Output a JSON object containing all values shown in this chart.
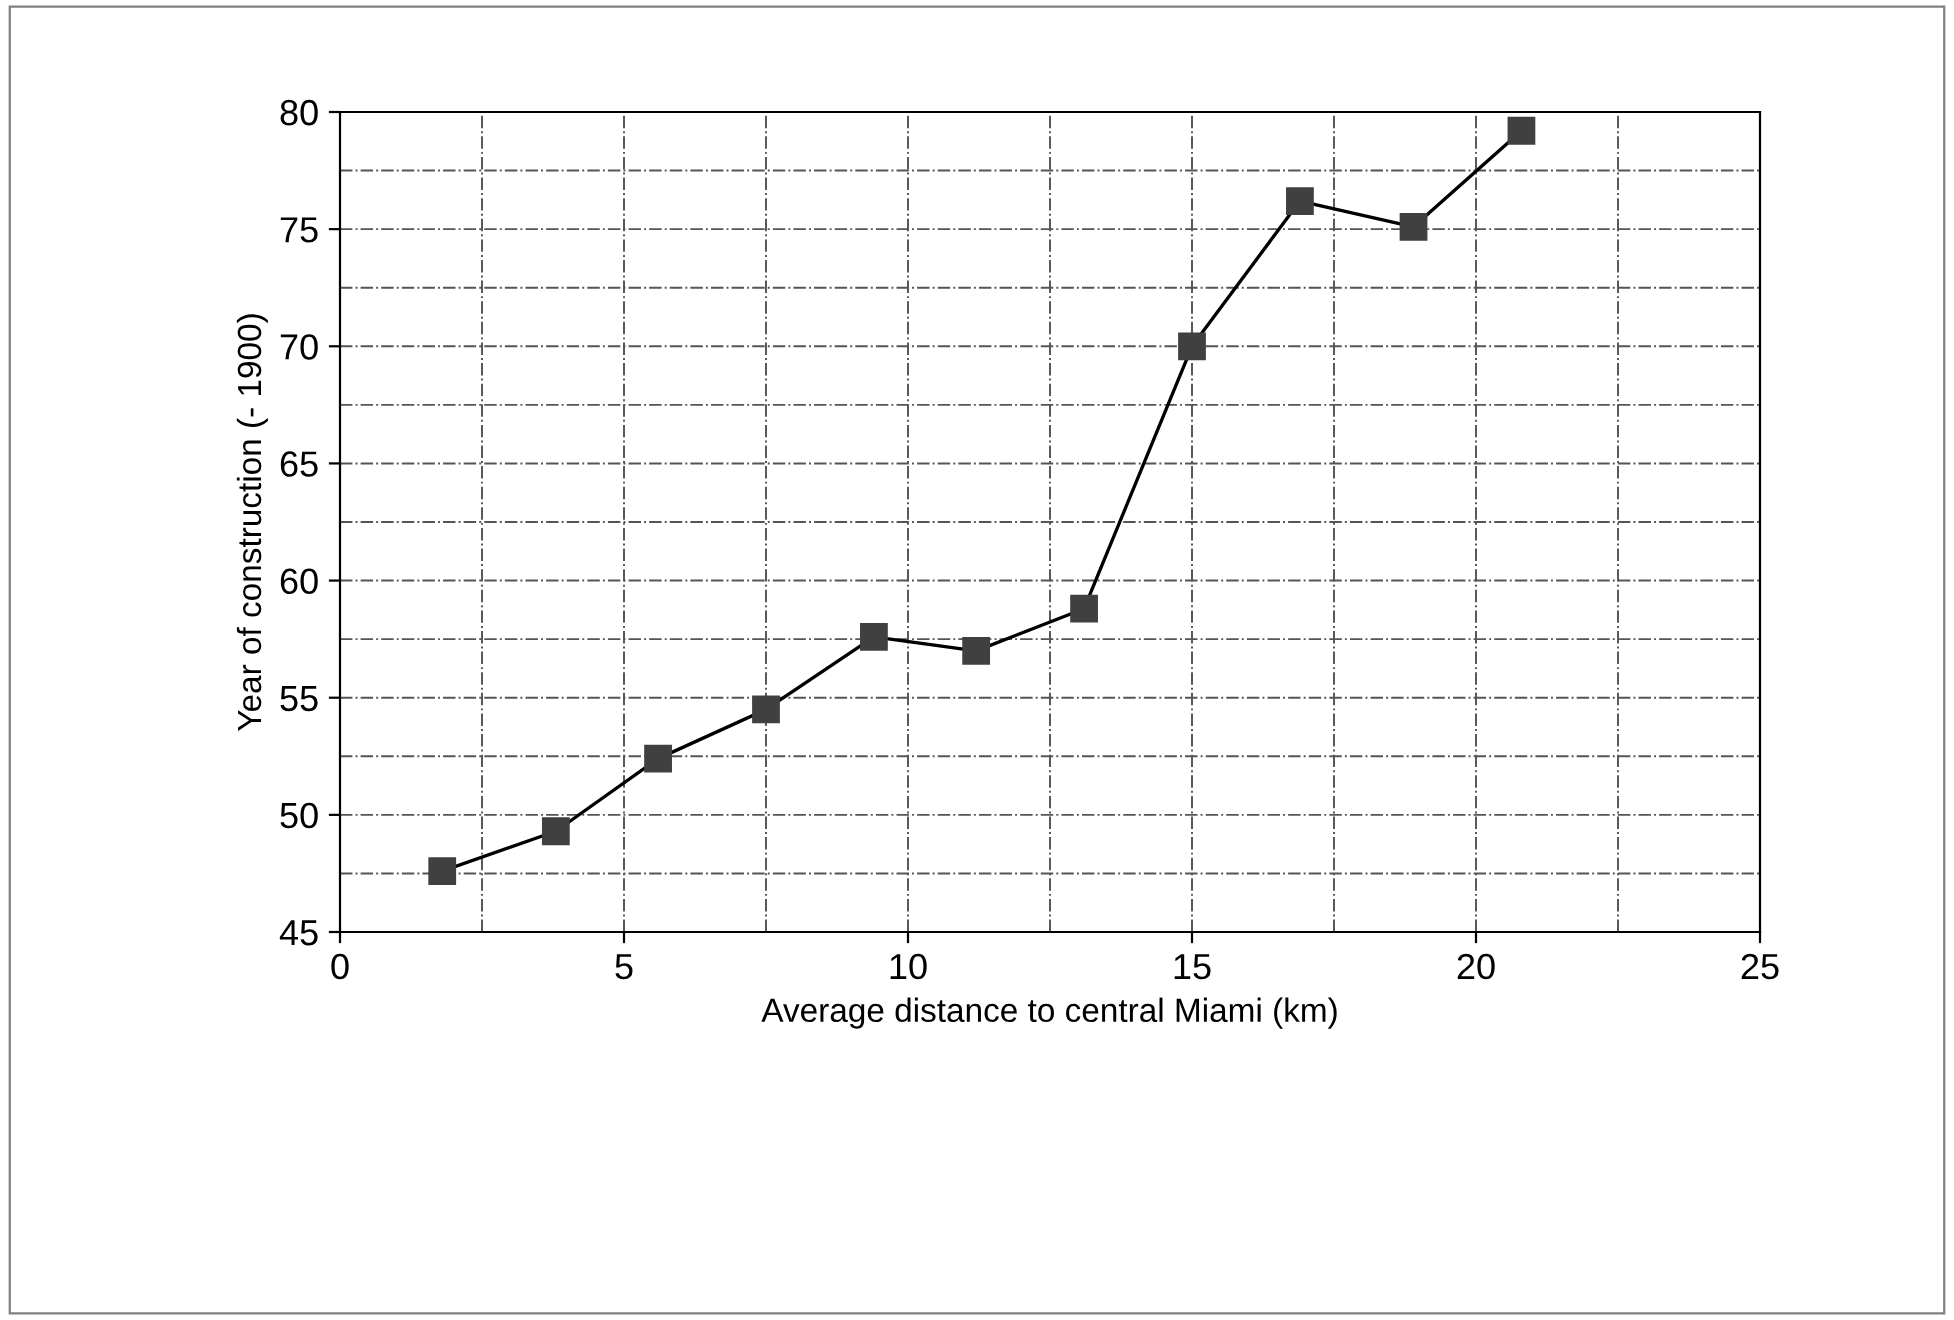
{
  "chart_data": {
    "type": "line",
    "xlabel": "Average distance to central Miami (km)",
    "ylabel": "Year of construction (- 1900)",
    "x": [
      1.8,
      3.8,
      5.6,
      7.5,
      9.4,
      11.2,
      13.1,
      15.0,
      16.9,
      18.9,
      20.8
    ],
    "series": [
      {
        "color": "#404040",
        "values": [
          47.6,
          49.3,
          52.4,
          54.5,
          57.6,
          57.0,
          58.8,
          70.0,
          76.2,
          75.1,
          79.2
        ]
      }
    ],
    "xlim": [
      0,
      25
    ],
    "xticks": [
      0,
      5,
      10,
      15,
      20,
      25
    ],
    "ylim": [
      45,
      80
    ],
    "yticks": [
      45,
      50,
      55,
      60,
      65,
      70,
      75,
      80
    ],
    "grid": true,
    "marker": "square",
    "line_style": "solid"
  }
}
